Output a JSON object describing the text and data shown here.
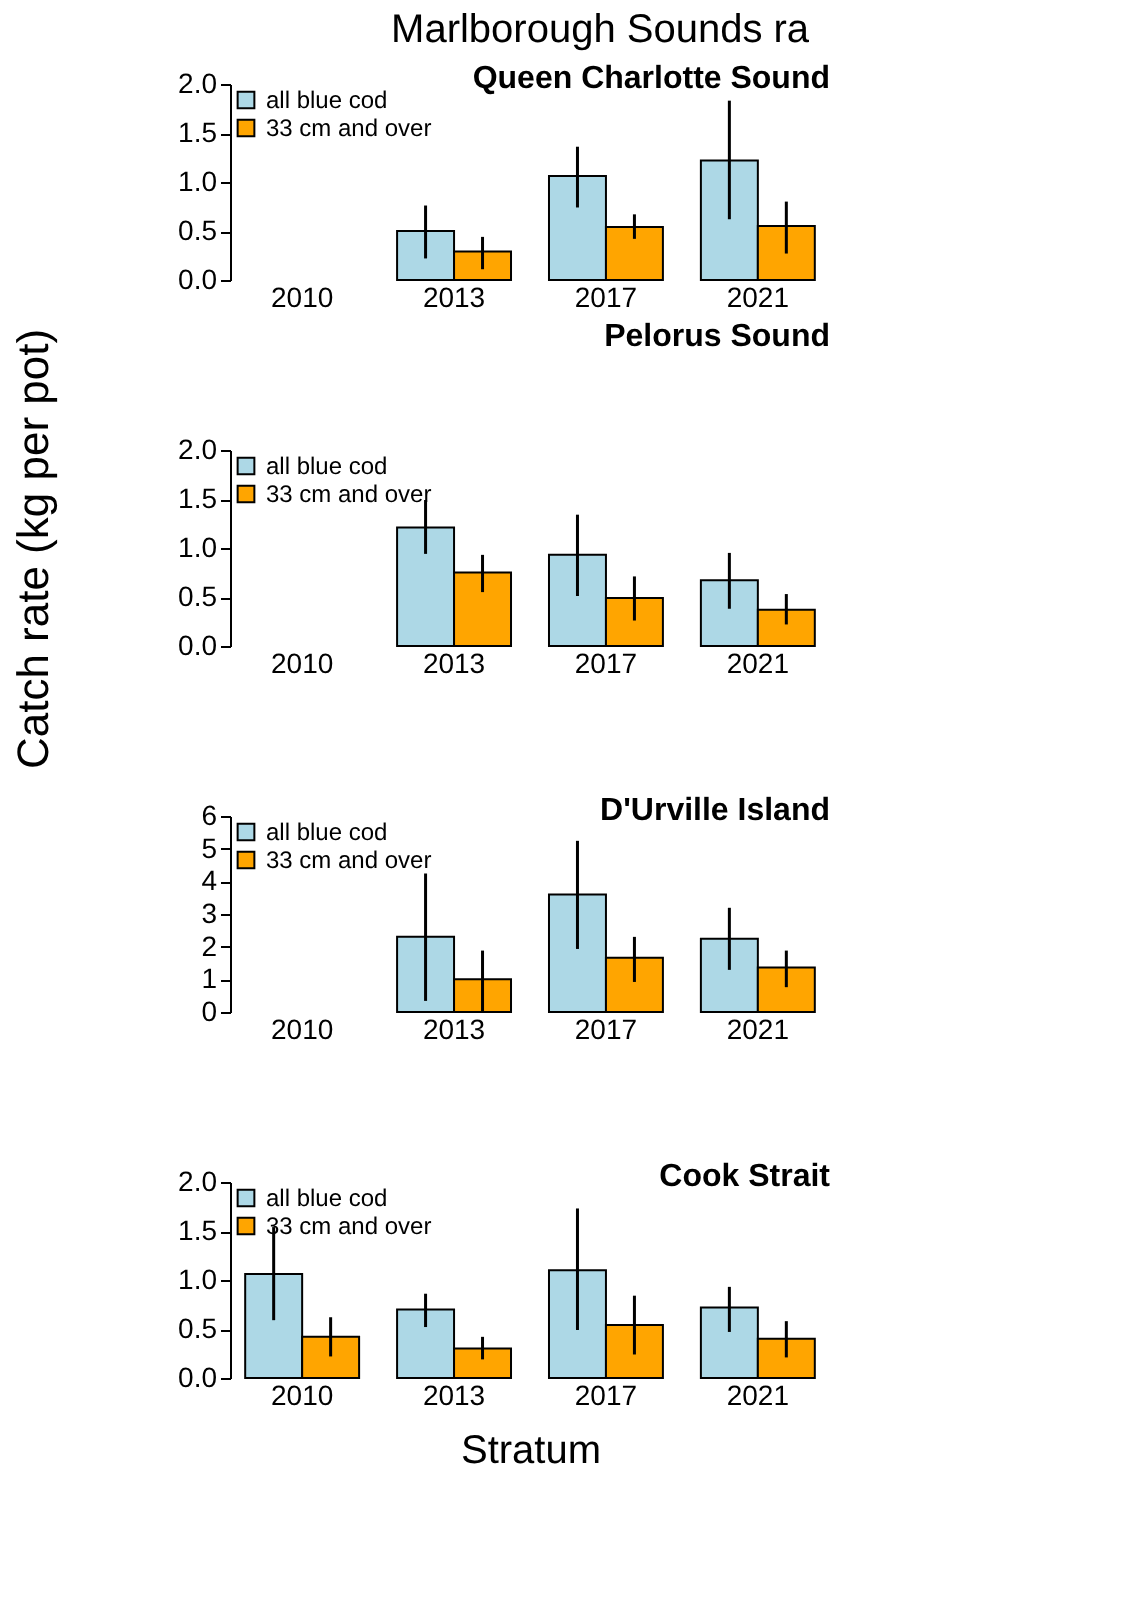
{
  "chart_data": [
    {
      "type": "bar",
      "title": "Queen Charlotte Sound",
      "annotations": [
        "Marlborough Sounds ra"
      ],
      "categories": [
        "2010",
        "2013",
        "2017",
        "2021"
      ],
      "legend": "top left",
      "grid": false,
      "ylim": [
        0,
        2
      ],
      "yticks": [
        {
          "value": 0,
          "label": "0.0"
        },
        {
          "value": 0.5,
          "label": "0.5"
        },
        {
          "value": 1,
          "label": "1.0"
        },
        {
          "value": 1.5,
          "label": "1.5"
        },
        {
          "value": 2,
          "label": "2.0"
        }
      ],
      "series": [
        {
          "name": "all blue cod",
          "color": "#add8e6",
          "values": [
            null,
            0.5,
            1.06,
            1.22
          ],
          "errors": [
            null,
            [
              0.22,
              0.76
            ],
            [
              0.74,
              1.36
            ],
            [
              0.62,
              1.83
            ]
          ]
        },
        {
          "name": "33 cm and over",
          "color": "#ffa500",
          "values": [
            null,
            0.29,
            0.54,
            0.55
          ],
          "errors": [
            null,
            [
              0.11,
              0.44
            ],
            [
              0.42,
              0.67
            ],
            [
              0.27,
              0.8
            ]
          ]
        }
      ]
    },
    {
      "type": "bar",
      "title": "Pelorus Sound",
      "ylabel": "Catch rate (kg per pot)",
      "categories": [
        "2010",
        "2013",
        "2017",
        "2021"
      ],
      "legend": "top left",
      "grid": false,
      "ylim": [
        0,
        2
      ],
      "yticks": [
        {
          "value": 0,
          "label": "0.0"
        },
        {
          "value": 0.5,
          "label": "0.5"
        },
        {
          "value": 1,
          "label": "1.0"
        },
        {
          "value": 1.5,
          "label": "1.5"
        },
        {
          "value": 2,
          "label": "2.0"
        }
      ],
      "series": [
        {
          "name": "all blue cod",
          "color": "#add8e6",
          "values": [
            null,
            1.21,
            0.93,
            0.67
          ],
          "errors": [
            null,
            [
              0.94,
              1.49
            ],
            [
              0.51,
              1.34
            ],
            [
              0.38,
              0.95
            ]
          ]
        },
        {
          "name": "33 cm and over",
          "color": "#ffa500",
          "values": [
            null,
            0.75,
            0.49,
            0.37
          ],
          "errors": [
            null,
            [
              0.55,
              0.93
            ],
            [
              0.26,
              0.71
            ],
            [
              0.22,
              0.53
            ]
          ]
        }
      ]
    },
    {
      "type": "bar",
      "title": "D'Urville Island",
      "categories": [
        "2010",
        "2013",
        "2017",
        "2021"
      ],
      "legend": "top left",
      "grid": false,
      "ylim": [
        0,
        6
      ],
      "yticks": [
        0,
        1,
        2,
        3,
        4,
        5,
        6
      ],
      "series": [
        {
          "name": "all blue cod",
          "color": "#add8e6",
          "values": [
            null,
            2.3,
            3.6,
            2.24
          ],
          "errors": [
            null,
            [
              0.34,
              4.24
            ],
            [
              1.93,
              5.24
            ],
            [
              1.29,
              3.19
            ]
          ]
        },
        {
          "name": "33 cm and over",
          "color": "#ffa500",
          "values": [
            null,
            1.0,
            1.66,
            1.36
          ],
          "errors": [
            null,
            [
              0,
              1.88
            ],
            [
              0.92,
              2.3
            ],
            [
              0.76,
              1.88
            ]
          ]
        }
      ]
    },
    {
      "type": "bar",
      "title": "Cook Strait",
      "xlabel": "Stratum",
      "categories": [
        "2010",
        "2013",
        "2017",
        "2021"
      ],
      "legend": "top left",
      "grid": false,
      "ylim": [
        0,
        2
      ],
      "yticks": [
        {
          "value": 0,
          "label": "0.0"
        },
        {
          "value": 0.5,
          "label": "0.5"
        },
        {
          "value": 1,
          "label": "1.0"
        },
        {
          "value": 1.5,
          "label": "1.5"
        },
        {
          "value": 2,
          "label": "2.0"
        }
      ],
      "series": [
        {
          "name": "all blue cod",
          "color": "#add8e6",
          "values": [
            1.06,
            0.7,
            1.1,
            0.72
          ],
          "errors": [
            [
              0.59,
              1.54
            ],
            [
              0.52,
              0.86
            ],
            [
              0.49,
              1.73
            ],
            [
              0.47,
              0.93
            ]
          ]
        },
        {
          "name": "33 cm and over",
          "color": "#ffa500",
          "values": [
            0.42,
            0.3,
            0.54,
            0.4
          ],
          "errors": [
            [
              0.22,
              0.62
            ],
            [
              0.19,
              0.42
            ],
            [
              0.24,
              0.84
            ],
            [
              0.21,
              0.58
            ]
          ]
        }
      ]
    }
  ]
}
